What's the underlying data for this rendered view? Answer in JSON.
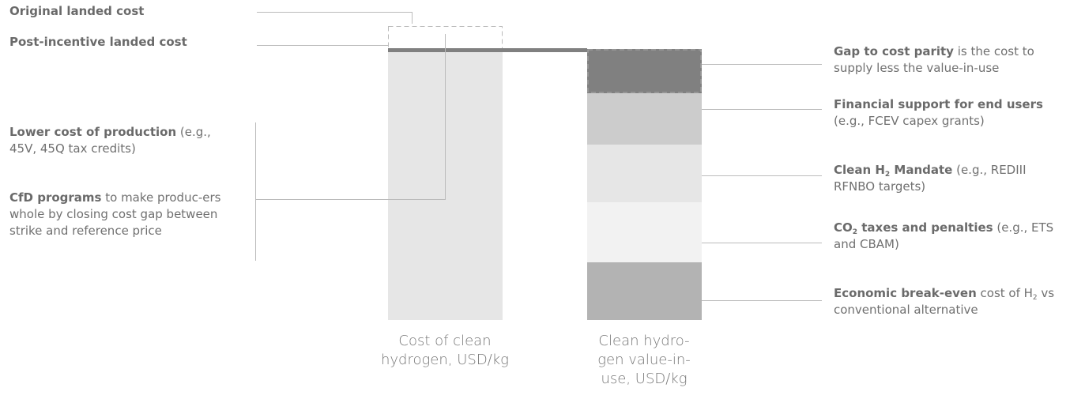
{
  "left_labels": [
    {
      "bold": "Original landed cost"
    },
    {
      "bold": "Post-incentive landed cost"
    },
    {
      "bold": "Lower cost of production",
      "text": " (e.g., 45V, 45Q tax credits)"
    },
    {
      "bold": "CfD programs",
      "text": " to make produc-ers whole by closing cost gap between strike and reference price"
    }
  ],
  "right_labels": [
    {
      "bold": "Gap to cost parity",
      "text": " is the cost to supply less the value-in-use"
    },
    {
      "bold": "Financial support for end users",
      "text": " (e.g., FCEV capex grants)"
    },
    {
      "bold": "Clean H",
      "bold_sub": "2",
      "bold_2": " Mandate",
      "text": " (e.g., REDIII RFNBO targets)"
    },
    {
      "bold": "CO",
      "bold_sub": "2",
      "bold_2": " taxes and penalties",
      "text": " (e.g., ETS and CBAM)"
    },
    {
      "bold": "Economic break-even",
      "text": " cost of H",
      "text_sub": "2",
      "text_2": " vs conventional alternative"
    }
  ],
  "bar_labels": [
    "Cost of clean hydrogen, USD/kg",
    "Clean hydro-gen value-in-use, USD/kg"
  ]
}
